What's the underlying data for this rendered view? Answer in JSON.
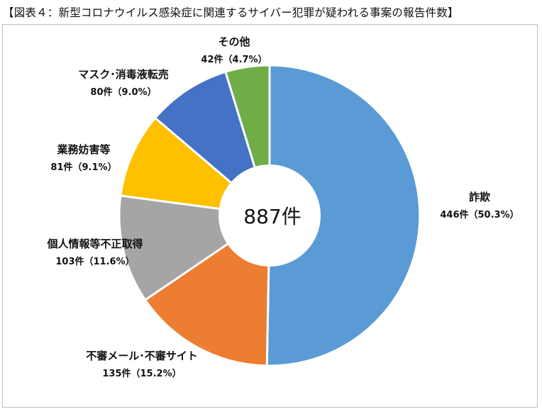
{
  "title": "【図表４：新型コロナウイルス感染症に関連するサイバー犯罪が疑われる事案の報告件数】",
  "center_label": "887件",
  "chart_data": {
    "type": "pie",
    "title": "【図表４：新型コロナウイルス感染症に関連するサイバー犯罪が疑われる事案の報告件数】",
    "total": 887,
    "total_label": "887件",
    "slices": [
      {
        "name": "詐欺",
        "count": 446,
        "percent": 50.3,
        "value_label": "446件（50.3%）",
        "color": "#5b9bd5"
      },
      {
        "name": "不審メール･不審サイト",
        "count": 135,
        "percent": 15.2,
        "value_label": "135件（15.2%）",
        "color": "#ed7d31"
      },
      {
        "name": "個人情報等不正取得",
        "count": 103,
        "percent": 11.6,
        "value_label": "103件（11.6%）",
        "color": "#a5a5a5"
      },
      {
        "name": "業務妨害等",
        "count": 81,
        "percent": 9.1,
        "value_label": "81件（9.1%）",
        "color": "#ffc000"
      },
      {
        "name": "マスク･消毒液転売",
        "count": 80,
        "percent": 9.0,
        "value_label": "80件（9.0%）",
        "color": "#4472c4"
      },
      {
        "name": "その他",
        "count": 42,
        "percent": 4.7,
        "value_label": "42件（4.7%）",
        "color": "#70ad47"
      }
    ]
  }
}
